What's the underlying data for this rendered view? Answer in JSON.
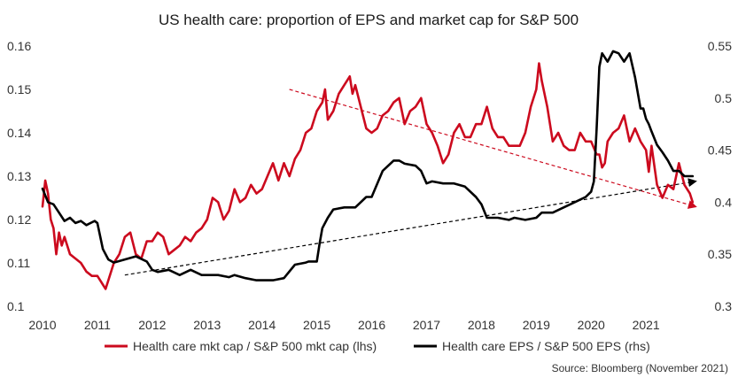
{
  "chart_data": {
    "type": "line",
    "title": "US health care: proportion of EPS and market cap for S&P 500",
    "source": "Source: Bloomberg (November 2021)",
    "x_ticks": [
      "2010",
      "2011",
      "2012",
      "2013",
      "2014",
      "2015",
      "2016",
      "2017",
      "2018",
      "2019",
      "2020",
      "2021"
    ],
    "xlim": [
      2010.0,
      2021.95
    ],
    "ylim_left": [
      0.1,
      0.16
    ],
    "ylim_right": [
      0.3,
      0.55
    ],
    "y_ticks_left": [
      "0.1",
      "0.11",
      "0.12",
      "0.13",
      "0.14",
      "0.15",
      "0.16"
    ],
    "y_ticks_right": [
      "0.3",
      "0.35",
      "0.4",
      "0.45",
      "0.5",
      "0.55"
    ],
    "legend": {
      "position": "bottom",
      "items": [
        "Health care mkt cap / S&P 500 mkt cap (lhs)",
        "Health care EPS / S&P 500 EPS (rhs)"
      ]
    },
    "colors": {
      "mktcap": "#cc0a1e",
      "eps": "#000000",
      "trend": "#cc0a1e",
      "trend_eps": "#000000"
    },
    "series": [
      {
        "name": "Health care mkt cap / S&P 500 mkt cap (lhs)",
        "axis": "left",
        "color": "#cc0a1e",
        "x": [
          2010.0,
          2010.05,
          2010.1,
          2010.15,
          2010.2,
          2010.25,
          2010.3,
          2010.35,
          2010.4,
          2010.5,
          2010.6,
          2010.7,
          2010.8,
          2010.9,
          2011.0,
          2011.05,
          2011.1,
          2011.15,
          2011.2,
          2011.3,
          2011.4,
          2011.5,
          2011.6,
          2011.7,
          2011.8,
          2011.9,
          2012.0,
          2012.1,
          2012.2,
          2012.3,
          2012.4,
          2012.5,
          2012.6,
          2012.7,
          2012.8,
          2012.9,
          2013.0,
          2013.1,
          2013.2,
          2013.3,
          2013.4,
          2013.5,
          2013.6,
          2013.7,
          2013.8,
          2013.9,
          2014.0,
          2014.1,
          2014.2,
          2014.3,
          2014.4,
          2014.5,
          2014.6,
          2014.7,
          2014.8,
          2014.9,
          2015.0,
          2015.1,
          2015.15,
          2015.2,
          2015.3,
          2015.4,
          2015.5,
          2015.6,
          2015.65,
          2015.7,
          2015.8,
          2015.9,
          2016.0,
          2016.1,
          2016.2,
          2016.3,
          2016.4,
          2016.5,
          2016.6,
          2016.7,
          2016.8,
          2016.9,
          2017.0,
          2017.1,
          2017.2,
          2017.3,
          2017.4,
          2017.5,
          2017.6,
          2017.7,
          2017.8,
          2017.9,
          2018.0,
          2018.1,
          2018.2,
          2018.3,
          2018.4,
          2018.5,
          2018.6,
          2018.7,
          2018.8,
          2018.9,
          2019.0,
          2019.05,
          2019.1,
          2019.2,
          2019.3,
          2019.4,
          2019.5,
          2019.6,
          2019.7,
          2019.8,
          2019.9,
          2020.0,
          2020.1,
          2020.15,
          2020.2,
          2020.25,
          2020.3,
          2020.4,
          2020.5,
          2020.6,
          2020.7,
          2020.8,
          2020.9,
          2021.0,
          2021.05,
          2021.1,
          2021.2,
          2021.3,
          2021.4,
          2021.5,
          2021.6,
          2021.7,
          2021.8,
          2021.85
        ],
        "values": [
          0.123,
          0.129,
          0.126,
          0.12,
          0.118,
          0.112,
          0.117,
          0.114,
          0.116,
          0.112,
          0.111,
          0.11,
          0.108,
          0.107,
          0.107,
          0.106,
          0.105,
          0.104,
          0.106,
          0.11,
          0.112,
          0.116,
          0.117,
          0.112,
          0.111,
          0.115,
          0.115,
          0.117,
          0.116,
          0.112,
          0.113,
          0.114,
          0.116,
          0.115,
          0.117,
          0.118,
          0.12,
          0.125,
          0.124,
          0.12,
          0.122,
          0.127,
          0.124,
          0.125,
          0.128,
          0.126,
          0.127,
          0.13,
          0.133,
          0.129,
          0.133,
          0.13,
          0.134,
          0.136,
          0.14,
          0.141,
          0.145,
          0.147,
          0.15,
          0.143,
          0.145,
          0.149,
          0.151,
          0.153,
          0.149,
          0.151,
          0.146,
          0.141,
          0.14,
          0.141,
          0.144,
          0.145,
          0.147,
          0.148,
          0.142,
          0.145,
          0.146,
          0.148,
          0.142,
          0.14,
          0.137,
          0.133,
          0.135,
          0.14,
          0.142,
          0.139,
          0.139,
          0.142,
          0.142,
          0.146,
          0.141,
          0.139,
          0.139,
          0.137,
          0.137,
          0.137,
          0.14,
          0.146,
          0.15,
          0.156,
          0.152,
          0.146,
          0.138,
          0.14,
          0.137,
          0.136,
          0.136,
          0.14,
          0.138,
          0.138,
          0.135,
          0.135,
          0.132,
          0.133,
          0.138,
          0.14,
          0.141,
          0.144,
          0.138,
          0.141,
          0.138,
          0.136,
          0.131,
          0.137,
          0.128,
          0.125,
          0.128,
          0.127,
          0.133,
          0.128,
          0.126,
          0.124
        ]
      },
      {
        "name": "Health care EPS / S&P 500 EPS (rhs)",
        "axis": "right",
        "color": "#000000",
        "x": [
          2010.0,
          2010.1,
          2010.2,
          2010.3,
          2010.4,
          2010.5,
          2010.6,
          2010.7,
          2010.8,
          2010.95,
          2011.0,
          2011.1,
          2011.2,
          2011.3,
          2011.5,
          2011.7,
          2011.9,
          2012.0,
          2012.1,
          2012.3,
          2012.5,
          2012.7,
          2012.9,
          2013.0,
          2013.2,
          2013.4,
          2013.5,
          2013.7,
          2013.9,
          2014.0,
          2014.2,
          2014.4,
          2014.6,
          2014.8,
          2014.85,
          2015.0,
          2015.05,
          2015.1,
          2015.2,
          2015.3,
          2015.5,
          2015.7,
          2015.8,
          2015.9,
          2016.0,
          2016.2,
          2016.4,
          2016.5,
          2016.6,
          2016.8,
          2016.9,
          2017.0,
          2017.1,
          2017.3,
          2017.5,
          2017.7,
          2017.9,
          2018.0,
          2018.1,
          2018.3,
          2018.5,
          2018.6,
          2018.8,
          2019.0,
          2019.1,
          2019.3,
          2019.5,
          2019.7,
          2019.9,
          2020.0,
          2020.05,
          2020.1,
          2020.15,
          2020.2,
          2020.3,
          2020.4,
          2020.5,
          2020.6,
          2020.7,
          2020.8,
          2020.9,
          2020.95,
          2021.0,
          2021.05,
          2021.1,
          2021.2,
          2021.3,
          2021.4,
          2021.5,
          2021.6,
          2021.7,
          2021.8,
          2021.85
        ],
        "values": [
          0.413,
          0.4,
          0.398,
          0.39,
          0.382,
          0.385,
          0.38,
          0.382,
          0.378,
          0.382,
          0.38,
          0.355,
          0.345,
          0.342,
          0.345,
          0.348,
          0.343,
          0.335,
          0.333,
          0.335,
          0.33,
          0.335,
          0.33,
          0.33,
          0.33,
          0.328,
          0.33,
          0.327,
          0.325,
          0.325,
          0.325,
          0.327,
          0.34,
          0.342,
          0.343,
          0.343,
          0.36,
          0.375,
          0.385,
          0.393,
          0.395,
          0.395,
          0.4,
          0.405,
          0.405,
          0.43,
          0.44,
          0.44,
          0.437,
          0.435,
          0.43,
          0.418,
          0.42,
          0.418,
          0.418,
          0.415,
          0.405,
          0.398,
          0.385,
          0.385,
          0.383,
          0.385,
          0.383,
          0.385,
          0.39,
          0.39,
          0.395,
          0.4,
          0.405,
          0.41,
          0.42,
          0.47,
          0.53,
          0.543,
          0.535,
          0.545,
          0.543,
          0.535,
          0.543,
          0.52,
          0.49,
          0.49,
          0.48,
          0.475,
          0.468,
          0.455,
          0.448,
          0.44,
          0.43,
          0.43,
          0.425,
          0.425,
          0.425
        ]
      }
    ],
    "trend_lines": [
      {
        "axis": "left",
        "x": [
          2014.5,
          2021.9
        ],
        "values": [
          0.15,
          0.123
        ],
        "color": "#cc0a1e",
        "arrow": true
      },
      {
        "axis": "right",
        "x": [
          2011.5,
          2021.9
        ],
        "values": [
          0.33,
          0.42
        ],
        "color": "#000000",
        "arrow": true
      }
    ]
  }
}
